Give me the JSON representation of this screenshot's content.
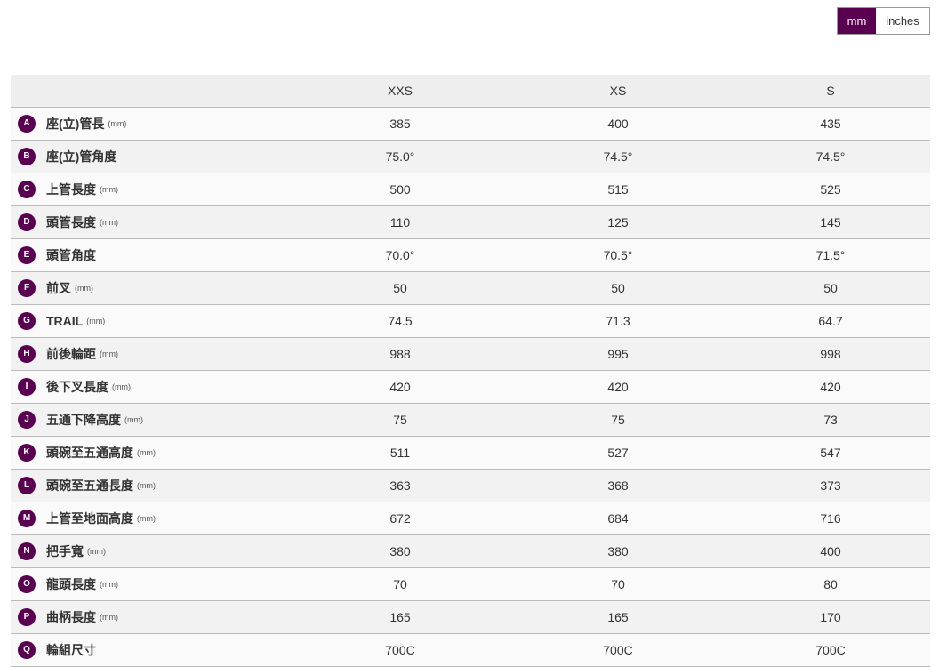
{
  "units_toggle": {
    "options": [
      "mm",
      "inches"
    ],
    "selected": "mm",
    "accent": "#5a0050"
  },
  "columns": [
    "XXS",
    "XS",
    "S"
  ],
  "rows": [
    {
      "letter": "A",
      "name": "座(立)管長",
      "unit": "(mm)",
      "values": [
        "385",
        "400",
        "435"
      ]
    },
    {
      "letter": "B",
      "name": "座(立)管角度",
      "unit": "",
      "values": [
        "75.0°",
        "74.5°",
        "74.5°"
      ]
    },
    {
      "letter": "C",
      "name": "上管長度",
      "unit": "(mm)",
      "values": [
        "500",
        "515",
        "525"
      ]
    },
    {
      "letter": "D",
      "name": "頭管長度",
      "unit": "(mm)",
      "values": [
        "110",
        "125",
        "145"
      ]
    },
    {
      "letter": "E",
      "name": "頭管角度",
      "unit": "",
      "values": [
        "70.0°",
        "70.5°",
        "71.5°"
      ]
    },
    {
      "letter": "F",
      "name": "前叉",
      "unit": "(mm)",
      "values": [
        "50",
        "50",
        "50"
      ]
    },
    {
      "letter": "G",
      "name": "TRAIL",
      "unit": "(mm)",
      "values": [
        "74.5",
        "71.3",
        "64.7"
      ]
    },
    {
      "letter": "H",
      "name": "前後輪距",
      "unit": "(mm)",
      "values": [
        "988",
        "995",
        "998"
      ]
    },
    {
      "letter": "I",
      "name": "後下叉長度",
      "unit": "(mm)",
      "values": [
        "420",
        "420",
        "420"
      ]
    },
    {
      "letter": "J",
      "name": "五通下降高度",
      "unit": "(mm)",
      "values": [
        "75",
        "75",
        "73"
      ]
    },
    {
      "letter": "K",
      "name": "頭碗至五通高度",
      "unit": "(mm)",
      "values": [
        "511",
        "527",
        "547"
      ]
    },
    {
      "letter": "L",
      "name": "頭碗至五通長度",
      "unit": "(mm)",
      "values": [
        "363",
        "368",
        "373"
      ]
    },
    {
      "letter": "M",
      "name": "上管至地面高度",
      "unit": "(mm)",
      "values": [
        "672",
        "684",
        "716"
      ]
    },
    {
      "letter": "N",
      "name": "把手寬",
      "unit": "(mm)",
      "values": [
        "380",
        "380",
        "400"
      ]
    },
    {
      "letter": "O",
      "name": "龍頭長度",
      "unit": "(mm)",
      "values": [
        "70",
        "70",
        "80"
      ]
    },
    {
      "letter": "P",
      "name": "曲柄長度",
      "unit": "(mm)",
      "values": [
        "165",
        "165",
        "170"
      ]
    },
    {
      "letter": "Q",
      "name": "輪組尺寸",
      "unit": "",
      "values": [
        "700C",
        "700C",
        "700C"
      ]
    }
  ]
}
